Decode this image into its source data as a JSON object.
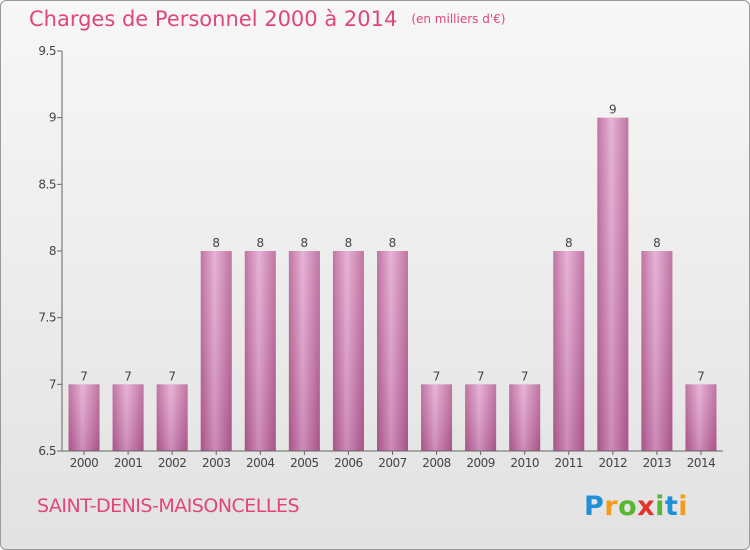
{
  "chart_data": {
    "type": "bar",
    "title": "Charges de Personnel 2000 à 2014",
    "subtitle": "(en milliers d'€)",
    "categories": [
      "2000",
      "2001",
      "2002",
      "2003",
      "2004",
      "2005",
      "2006",
      "2007",
      "2008",
      "2009",
      "2010",
      "2011",
      "2012",
      "2013",
      "2014"
    ],
    "values": [
      7,
      7,
      7,
      8,
      8,
      8,
      8,
      8,
      7,
      7,
      7,
      8,
      9,
      8,
      7
    ],
    "data_labels": [
      "7",
      "7",
      "7",
      "8",
      "8",
      "8",
      "8",
      "8",
      "7",
      "7",
      "7",
      "8",
      "9",
      "8",
      "7"
    ],
    "yticks": [
      "6.5",
      "7",
      "7.5",
      "8",
      "8.5",
      "9",
      "9.5"
    ],
    "ylim": [
      6.5,
      9.5
    ],
    "xlabel": "",
    "ylabel": "",
    "grid": false,
    "legend": "none",
    "bar_color": "#c06b9c"
  },
  "footer": {
    "commune": "SAINT-DENIS-MAISONCELLES",
    "brand_letters": [
      {
        "ch": "P",
        "color": "#1f8fd6"
      },
      {
        "ch": "r",
        "color": "#f29b1d"
      },
      {
        "ch": "o",
        "color": "#5cb531"
      },
      {
        "ch": "x",
        "color": "#e2332e"
      },
      {
        "ch": "i",
        "color": "#5cb531"
      },
      {
        "ch": "t",
        "color": "#1f8fd6"
      },
      {
        "ch": "i",
        "color": "#f29b1d"
      }
    ]
  },
  "colors": {
    "accent": "#e0457d",
    "axis": "#555555",
    "text": "#444444"
  }
}
